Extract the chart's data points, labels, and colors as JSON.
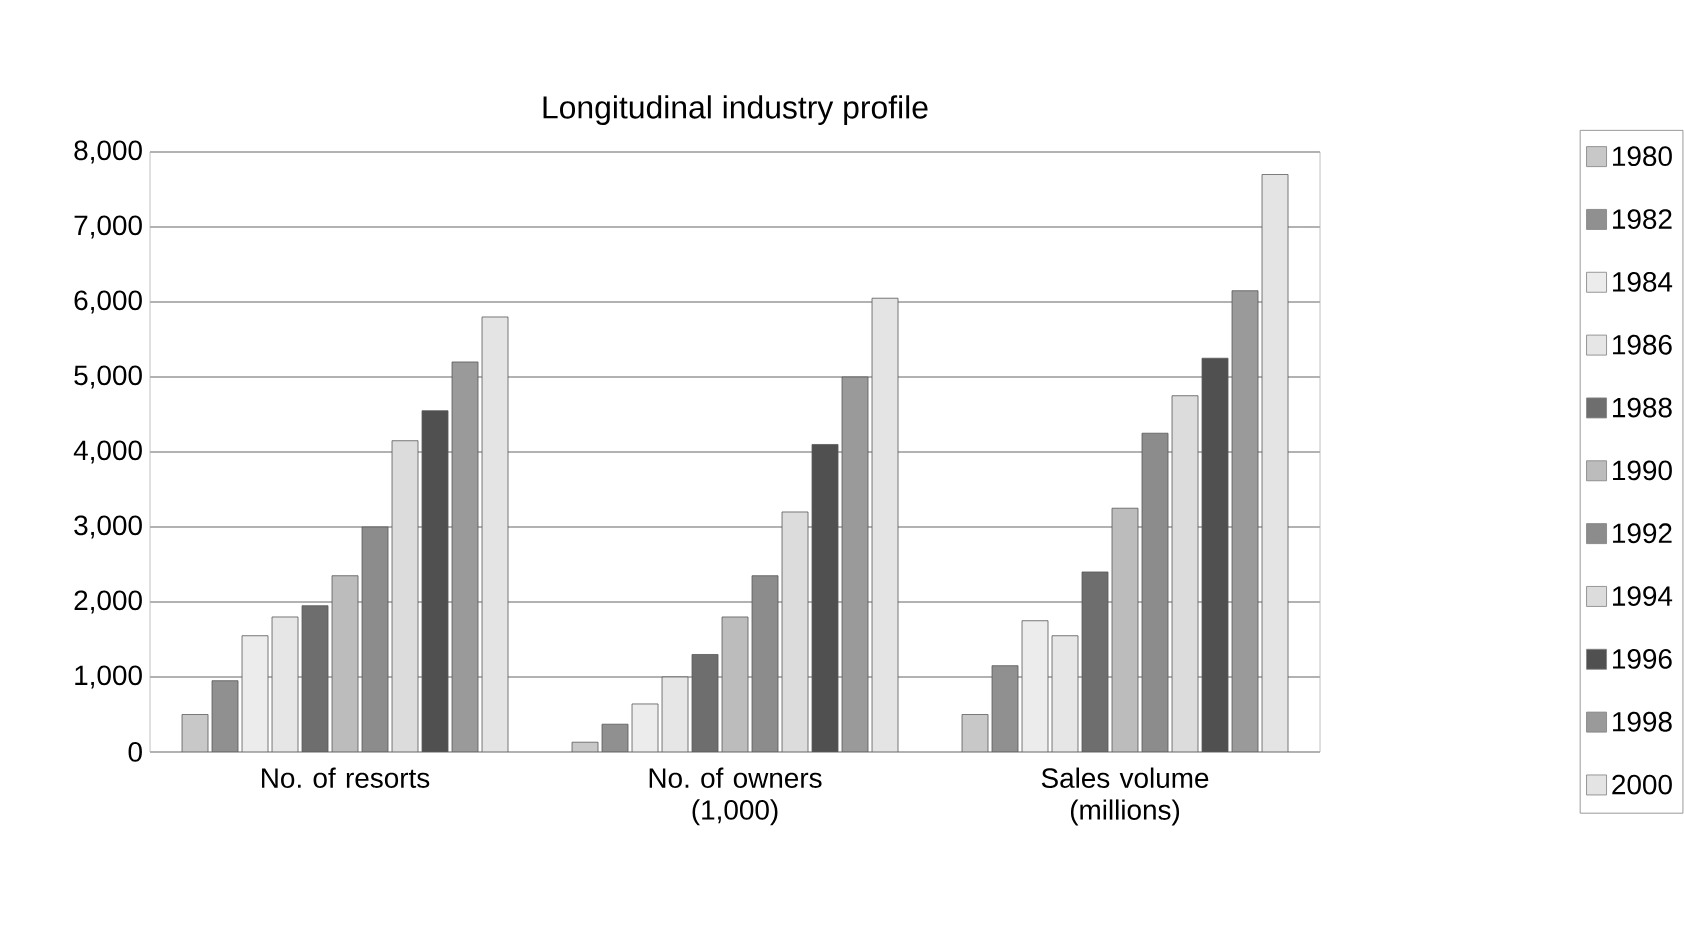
{
  "chart_data": {
    "type": "bar",
    "title": "Longitudinal industry profile",
    "categories": [
      "No. of resorts",
      "No. of owners (1,000)",
      "Sales volume (millions)"
    ],
    "series": [
      {
        "name": "1980",
        "color": "#c8c8c8",
        "values": [
          500,
          130,
          500
        ]
      },
      {
        "name": "1982",
        "color": "#909090",
        "values": [
          950,
          370,
          1150
        ]
      },
      {
        "name": "1984",
        "color": "#ececec",
        "values": [
          1550,
          640,
          1750
        ]
      },
      {
        "name": "1986",
        "color": "#e6e6e6",
        "values": [
          1800,
          1000,
          1550
        ]
      },
      {
        "name": "1988",
        "color": "#6e6e6e",
        "values": [
          1950,
          1300,
          2400
        ]
      },
      {
        "name": "1990",
        "color": "#bcbcbc",
        "values": [
          2350,
          1800,
          3250
        ]
      },
      {
        "name": "1992",
        "color": "#8c8c8c",
        "values": [
          3000,
          2350,
          4250
        ]
      },
      {
        "name": "1994",
        "color": "#dcdcdc",
        "values": [
          4150,
          3200,
          4750
        ]
      },
      {
        "name": "1996",
        "color": "#505050",
        "values": [
          4550,
          4100,
          5250
        ]
      },
      {
        "name": "1998",
        "color": "#9a9a9a",
        "values": [
          5200,
          5000,
          6150
        ]
      },
      {
        "name": "2000",
        "color": "#e4e4e4",
        "values": [
          5800,
          6050,
          7700
        ]
      }
    ],
    "ylim": [
      0,
      8000
    ],
    "yticks": [
      {
        "value": 0,
        "label": "0"
      },
      {
        "value": 1000,
        "label": "1,000"
      },
      {
        "value": 2000,
        "label": "2,000"
      },
      {
        "value": 3000,
        "label": "3,000"
      },
      {
        "value": 4000,
        "label": "4,000"
      },
      {
        "value": 5000,
        "label": "5,000"
      },
      {
        "value": 6000,
        "label": "6,000"
      },
      {
        "value": 7000,
        "label": "7,000"
      },
      {
        "value": 8000,
        "label": "8,000"
      }
    ],
    "grid": "y",
    "legend": "right"
  }
}
